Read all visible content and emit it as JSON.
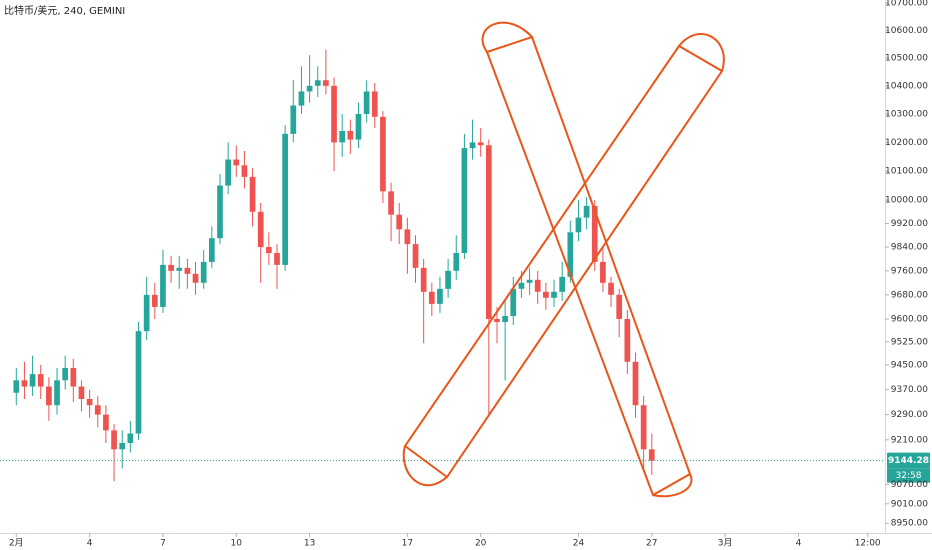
{
  "chart_data": {
    "type": "candlestick",
    "title": "比特币/美元, 240, GEMINI",
    "x": [
      0,
      8,
      16,
      24,
      32,
      40,
      48,
      56,
      64,
      72,
      80,
      88,
      96,
      104,
      112,
      120,
      128,
      136,
      144,
      152,
      160,
      168,
      176,
      184,
      192,
      200,
      208,
      216,
      224,
      232,
      240,
      248,
      256,
      264,
      272,
      280,
      288,
      296,
      304,
      312,
      320,
      328,
      336,
      344,
      352,
      360,
      368,
      376,
      384,
      392,
      400,
      408,
      416,
      424,
      432,
      440,
      448,
      456,
      464,
      472,
      480,
      488,
      496,
      504,
      512,
      520,
      528,
      536,
      544,
      552,
      560,
      568,
      576,
      584,
      592,
      600,
      608,
      616,
      624
    ],
    "open": [
      9360,
      9400,
      9380,
      9420,
      9380,
      9320,
      9400,
      9440,
      9380,
      9340,
      9320,
      9290,
      9240,
      9180,
      9200,
      9230,
      9560,
      9680,
      9640,
      9780,
      9760,
      9770,
      9750,
      9720,
      9790,
      9870,
      10050,
      10140,
      10120,
      10080,
      9960,
      9840,
      9820,
      9780,
      10230,
      10330,
      10380,
      10400,
      10420,
      10400,
      10200,
      10240,
      10210,
      10300,
      10380,
      10290,
      10030,
      9950,
      9900,
      9850,
      9770,
      9690,
      9650,
      9700,
      9760,
      9820,
      10180,
      10200,
      10190,
      9600,
      9590,
      9610,
      9700,
      9720,
      9730,
      9690,
      9670,
      9690,
      9740,
      9890,
      9940,
      9980,
      9790,
      9720,
      9680,
      9600,
      9460,
      9320,
      9180
    ],
    "high": [
      9440,
      9460,
      9480,
      9450,
      9410,
      9440,
      9480,
      9470,
      9400,
      9370,
      9350,
      9320,
      9260,
      9240,
      9270,
      9590,
      9740,
      9720,
      9830,
      9810,
      9810,
      9800,
      9790,
      9830,
      9910,
      10090,
      10200,
      10190,
      10170,
      10110,
      9990,
      9890,
      9850,
      10260,
      10420,
      10470,
      10510,
      10470,
      10530,
      10430,
      10300,
      10280,
      10340,
      10420,
      10410,
      10310,
      10060,
      9990,
      9940,
      9880,
      9800,
      9720,
      9740,
      9800,
      9880,
      10230,
      10280,
      10250,
      10210,
      9640,
      9660,
      9740,
      9760,
      9770,
      9760,
      9720,
      9730,
      9790,
      9930,
      10000,
      10010,
      10000,
      9840,
      9740,
      9700,
      9630,
      9490,
      9350,
      9230
    ],
    "low": [
      9320,
      9340,
      9350,
      9340,
      9270,
      9290,
      9370,
      9330,
      9300,
      9280,
      9250,
      9200,
      9080,
      9120,
      9170,
      9210,
      9530,
      9600,
      9620,
      9720,
      9700,
      9700,
      9680,
      9700,
      9770,
      9850,
      10020,
      10080,
      10040,
      9910,
      9720,
      9780,
      9700,
      9760,
      10200,
      10300,
      10340,
      10360,
      10370,
      10100,
      10150,
      10160,
      10180,
      10270,
      10250,
      9990,
      9860,
      9850,
      9750,
      9720,
      9520,
      9610,
      9620,
      9670,
      9730,
      9800,
      10140,
      10150,
      9290,
      9520,
      9400,
      9580,
      9670,
      9680,
      9650,
      9630,
      9640,
      9660,
      9720,
      9860,
      9900,
      9760,
      9690,
      9640,
      9540,
      9420,
      9280,
      9110,
      9100
    ],
    "close": [
      9400,
      9380,
      9420,
      9380,
      9320,
      9400,
      9440,
      9380,
      9340,
      9320,
      9290,
      9240,
      9180,
      9200,
      9230,
      9560,
      9680,
      9640,
      9780,
      9760,
      9770,
      9750,
      9720,
      9790,
      9870,
      10050,
      10140,
      10120,
      10080,
      9960,
      9840,
      9820,
      9780,
      10230,
      10330,
      10380,
      10400,
      10420,
      10400,
      10200,
      10240,
      10210,
      10300,
      10380,
      10290,
      10030,
      9950,
      9900,
      9850,
      9770,
      9690,
      9650,
      9700,
      9760,
      9820,
      10180,
      10200,
      10190,
      9600,
      9590,
      9610,
      9700,
      9720,
      9730,
      9690,
      9670,
      9690,
      9740,
      9890,
      9940,
      9980,
      9790,
      9720,
      9680,
      9600,
      9460,
      9320,
      9180,
      9144.28
    ],
    "up_color": "#26a69a",
    "down_color": "#ef5350",
    "xlim": [
      -16,
      853
    ],
    "xticks": [
      {
        "value": 0,
        "label": "2月"
      },
      {
        "value": 72,
        "label": "4"
      },
      {
        "value": 144,
        "label": "7"
      },
      {
        "value": 216,
        "label": "10"
      },
      {
        "value": 288,
        "label": "13"
      },
      {
        "value": 384,
        "label": "17"
      },
      {
        "value": 456,
        "label": "20"
      },
      {
        "value": 552,
        "label": "24"
      },
      {
        "value": 624,
        "label": "27"
      },
      {
        "value": 696,
        "label": "3月"
      },
      {
        "value": 768,
        "label": "4"
      },
      {
        "value": 836,
        "label": "12:00"
      }
    ],
    "ylim": [
      8920,
      10711
    ],
    "yticks": [
      {
        "value": 10700,
        "label": "10700.00"
      },
      {
        "value": 10600,
        "label": "10600.00"
      },
      {
        "value": 10500,
        "label": "10500.00"
      },
      {
        "value": 10400,
        "label": "10400.00"
      },
      {
        "value": 10300,
        "label": "10300.00"
      },
      {
        "value": 10200,
        "label": "10200.00"
      },
      {
        "value": 10100,
        "label": "10100.00"
      },
      {
        "value": 10000,
        "label": "10000.00"
      },
      {
        "value": 9920,
        "label": "9920.00"
      },
      {
        "value": 9840,
        "label": "9840.00"
      },
      {
        "value": 9760,
        "label": "9760.00"
      },
      {
        "value": 9680,
        "label": "9680.00"
      },
      {
        "value": 9600,
        "label": "9600.00"
      },
      {
        "value": 9525,
        "label": "9525.00"
      },
      {
        "value": 9450,
        "label": "9450.00"
      },
      {
        "value": 9370,
        "label": "9370.00"
      },
      {
        "value": 9290,
        "label": "9290.00"
      },
      {
        "value": 9210,
        "label": "9210.00"
      },
      {
        "value": 9070,
        "label": "9070.00"
      },
      {
        "value": 9010,
        "label": "9010.00"
      },
      {
        "value": 8950,
        "label": "8950.00"
      }
    ],
    "log_scale": true,
    "grid": false,
    "last_price_color": "#26a69a",
    "countdown": "32:58"
  }
}
